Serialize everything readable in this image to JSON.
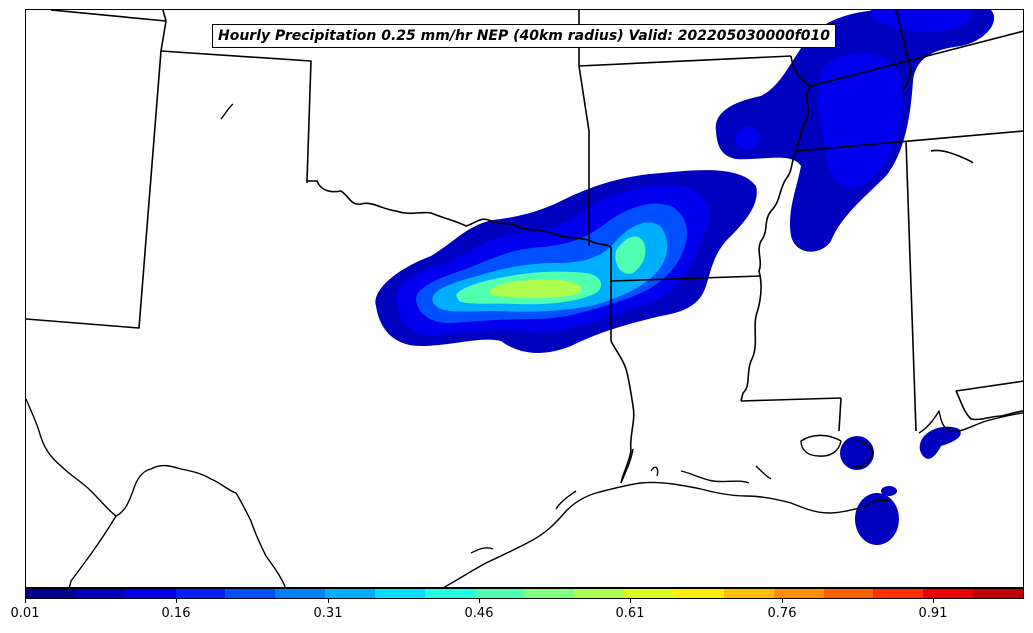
{
  "title": "Hourly Precipitation 0.25 mm/hr NEP (40km radius) Valid: 202205030000f010",
  "colorbar": {
    "tick_labels": [
      "0.01",
      "0.16",
      "0.31",
      "0.46",
      "0.61",
      "0.76",
      "0.91"
    ],
    "min": 0.01,
    "max": 1.0,
    "step": 0.05,
    "colors": [
      "#00008f",
      "#0000bf",
      "#0000ef",
      "#0020ff",
      "#0050ff",
      "#0080ff",
      "#00b0ff",
      "#00e0ff",
      "#20ffdf",
      "#50ffaf",
      "#80ff80",
      "#afff50",
      "#dfff20",
      "#ffef00",
      "#ffbf00",
      "#ff8f00",
      "#ff6000",
      "#ff3000",
      "#ef0000",
      "#bf0000"
    ]
  },
  "colors": {
    "boundary": "#000000",
    "background": "#ffffff"
  }
}
